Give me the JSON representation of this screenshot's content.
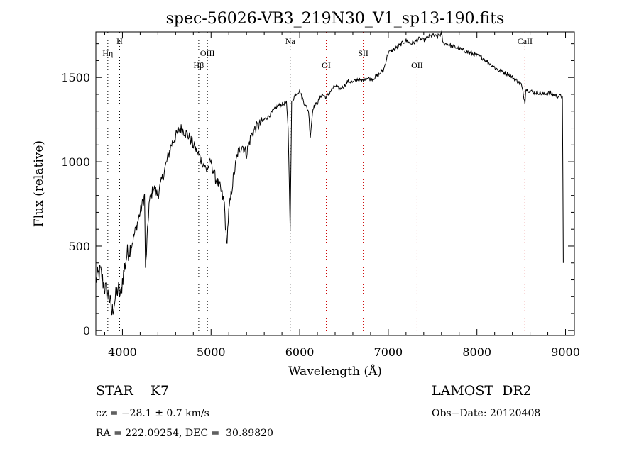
{
  "chart_data": {
    "type": "line",
    "title": "spec-56026-VB3_219N30_V1_sp13-190.fits",
    "xlabel": "Wavelength (Å)",
    "ylabel": "Flux (relative)",
    "xlim": [
      3700,
      9100
    ],
    "ylim": [
      -30,
      1770
    ],
    "x_ticks": [
      4000,
      5000,
      6000,
      7000,
      8000,
      9000
    ],
    "y_ticks": [
      0,
      500,
      1000,
      1500
    ],
    "series": [
      {
        "x": [
          3700,
          3750,
          3800,
          3850,
          3880,
          3900,
          3950,
          3980,
          4000,
          4050,
          4100,
          4150,
          4200,
          4250,
          4260,
          4300,
          4350,
          4400,
          4450,
          4500,
          4550,
          4600,
          4650,
          4700,
          4750,
          4800,
          4850,
          4900,
          4950,
          5000,
          5050,
          5100,
          5150,
          5175,
          5200,
          5250,
          5300,
          5350,
          5400,
          5450,
          5500,
          5550,
          5600,
          5650,
          5700,
          5750,
          5800,
          5850,
          5870,
          5893,
          5910,
          5950,
          6000,
          6050,
          6100,
          6120,
          6150,
          6200,
          6250,
          6300,
          6350,
          6400,
          6450,
          6500,
          6550,
          6600,
          6650,
          6700,
          6750,
          6800,
          6850,
          6900,
          6950,
          7000,
          7050,
          7100,
          7150,
          7200,
          7250,
          7300,
          7350,
          7400,
          7450,
          7500,
          7550,
          7600,
          7620,
          7650,
          7700,
          7750,
          7800,
          7850,
          7900,
          7950,
          8000,
          8050,
          8100,
          8150,
          8200,
          8250,
          8300,
          8350,
          8400,
          8450,
          8500,
          8542,
          8550,
          8600,
          8650,
          8700,
          8750,
          8800,
          8850,
          8900,
          8950,
          8965,
          8975
        ],
        "y": [
          300,
          350,
          250,
          200,
          100,
          150,
          250,
          200,
          300,
          450,
          500,
          600,
          700,
          800,
          350,
          750,
          850,
          800,
          900,
          1000,
          1100,
          1150,
          1200,
          1180,
          1150,
          1100,
          1050,
          1000,
          950,
          1000,
          900,
          850,
          750,
          500,
          700,
          900,
          1050,
          1100,
          1050,
          1150,
          1200,
          1220,
          1250,
          1270,
          1300,
          1330,
          1340,
          1350,
          1200,
          600,
          1350,
          1400,
          1420,
          1350,
          1300,
          1150,
          1320,
          1350,
          1400,
          1380,
          1420,
          1450,
          1430,
          1450,
          1480,
          1470,
          1490,
          1480,
          1500,
          1490,
          1500,
          1520,
          1550,
          1650,
          1660,
          1680,
          1700,
          1720,
          1700,
          1710,
          1730,
          1720,
          1740,
          1750,
          1740,
          1760,
          1700,
          1700,
          1690,
          1680,
          1670,
          1660,
          1650,
          1640,
          1630,
          1620,
          1600,
          1580,
          1560,
          1540,
          1530,
          1520,
          1500,
          1480,
          1460,
          1350,
          1430,
          1420,
          1410,
          1410,
          1400,
          1410,
          1400,
          1390,
          1390,
          1380,
          400
        ]
      }
    ],
    "lines": [
      {
        "label": "Hη",
        "x": 3835,
        "row": 2
      },
      {
        "label": "H",
        "x": 3968,
        "row": 1
      },
      {
        "label": "Hβ",
        "x": 4861,
        "row": 3
      },
      {
        "label": "OIII",
        "x": 4959,
        "row": 2
      },
      {
        "label": "Na",
        "x": 5893,
        "row": 1
      },
      {
        "label": "OI",
        "x": 6300,
        "row": 3
      },
      {
        "label": "SII",
        "x": 6717,
        "row": 2
      },
      {
        "label": "OII",
        "x": 7325,
        "row": 3
      },
      {
        "label": "CaII",
        "x": 8542,
        "row": 1
      }
    ],
    "line_colors": {
      "plain": "#000000",
      "red": "#cc0000"
    }
  },
  "info": {
    "object": "STAR    K7",
    "survey": "LAMOST  DR2",
    "cz": "cz = −28.1 ± 0.7 km/s",
    "obs_date": "Obs−Date: 20120408",
    "radec": "RA = 222.09254, DEC =  30.89820"
  }
}
